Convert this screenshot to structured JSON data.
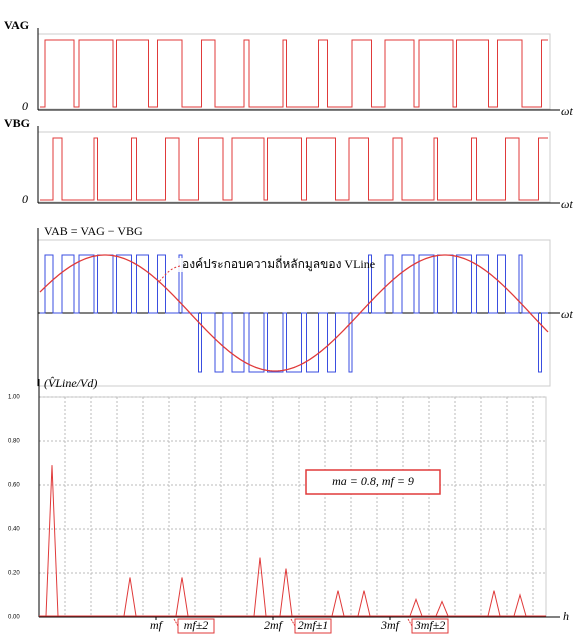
{
  "panels": [
    {
      "label": "VAG",
      "axis_label": "ωt",
      "zero": "0"
    },
    {
      "label": "VBG",
      "axis_label": "ωt",
      "zero": "0"
    },
    {
      "label": "VAB = VAG − VBG",
      "axis_label": "ωt",
      "annotation": "องค์ประกอบความถี่หลักมูลของ VLine"
    }
  ],
  "chart_data": {
    "type": "spectrum",
    "ylabel": "(V̂Line/Vd)",
    "xlabel": "h",
    "annotation": "ma = 0.8, mf = 9",
    "x": [
      1,
      7,
      11,
      17,
      19,
      23,
      25,
      29,
      31,
      35,
      37
    ],
    "values": [
      0.69,
      0.18,
      0.18,
      0.27,
      0.22,
      0.12,
      0.12,
      0.08,
      0.07,
      0.12,
      0.1
    ],
    "color": "#e03a3a",
    "xlim": [
      0,
      39
    ],
    "ylim": [
      0,
      1
    ],
    "yticks": [
      {
        "value": 0,
        "label": "0.00"
      },
      {
        "value": 0.2,
        "label": "0.20"
      },
      {
        "value": 0.4,
        "label": "0.40"
      },
      {
        "value": 0.6,
        "label": "0.60"
      },
      {
        "value": 0.8,
        "label": "0.80"
      },
      {
        "value": 1,
        "label": "1.00"
      }
    ],
    "xticks": [
      {
        "value": 9,
        "label": "mf"
      },
      {
        "value": 18,
        "label": "2mf"
      },
      {
        "value": 27,
        "label": "3mf"
      }
    ],
    "harmonic_notes": [
      "mf±2",
      "2mf±1",
      "3mf±2"
    ],
    "grid": true
  }
}
